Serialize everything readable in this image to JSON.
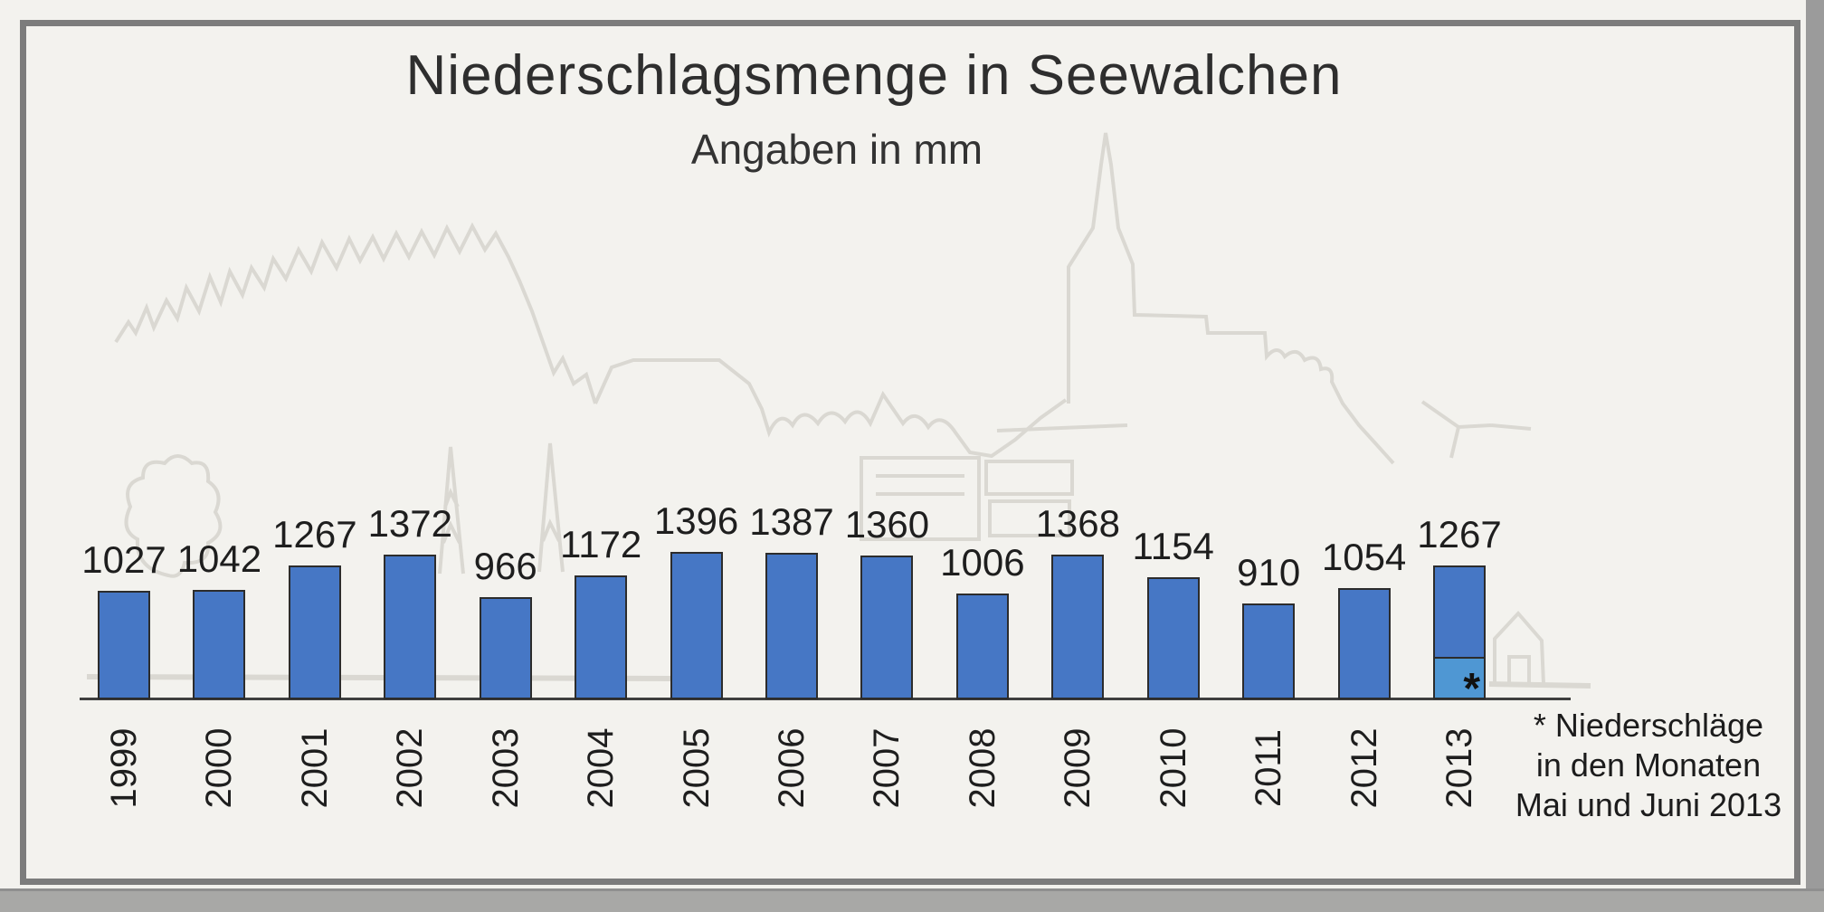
{
  "page": {
    "kind": "scanned-bar-chart",
    "background_color": "#f3f2ee",
    "frame_color": "#7c7c7c",
    "scan_edge_color": "#9b9b9b"
  },
  "header": {
    "title": "Niederschlagsmenge in Seewalchen",
    "subtitle": "Angaben in mm"
  },
  "footnote": {
    "line1": "* Niederschläge",
    "line2": "in den Monaten",
    "line3": "Mai und Juni 2013"
  },
  "watermark": {
    "name": "village-skyline-with-church-line-art",
    "color": "#d8d6d0"
  },
  "chart_data": {
    "type": "bar",
    "title": "Niederschlagsmenge in Seewalchen",
    "subtitle": "Angaben in mm",
    "unit": "mm",
    "categories": [
      "1999",
      "2000",
      "2001",
      "2002",
      "2003",
      "2004",
      "2005",
      "2006",
      "2007",
      "2008",
      "2009",
      "2010",
      "2011",
      "2012",
      "2013"
    ],
    "values": [
      1027,
      1042,
      1267,
      1372,
      966,
      1172,
      1396,
      1387,
      1360,
      1006,
      1368,
      1154,
      910,
      1054,
      1267
    ],
    "value_labels_shown": true,
    "xlabel": "",
    "ylabel": "",
    "ylim": [
      0,
      1450
    ],
    "grid": false,
    "legend": "none",
    "bar_color": "#4677c5",
    "bar_border_color": "#2c2c2c",
    "axis_color": "#3f3f3f",
    "highlight": {
      "category": "2013",
      "marker": "*",
      "segment_color": "#4f97d3",
      "segment_fraction_of_bar": 0.32,
      "meaning": "* Niederschläge in den Monaten Mai und Juni 2013"
    }
  }
}
